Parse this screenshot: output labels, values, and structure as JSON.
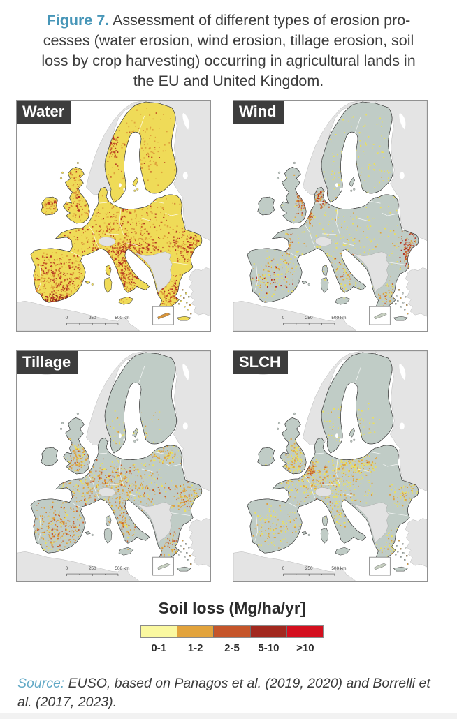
{
  "figure_caption": {
    "label": "Figure 7.",
    "lines": [
      "Assessment of different types of erosion pro-",
      "cesses (water erosion, wind erosion, tillage erosion, soil",
      "loss by crop harvesting) occurring in agricultural lands in",
      "the EU and United Kingdom."
    ]
  },
  "panels": [
    {
      "label": "Water",
      "base_color": "#efdb58",
      "scheme": "water"
    },
    {
      "label": "Wind",
      "base_color": "#c0ccc6",
      "scheme": "wind"
    },
    {
      "label": "Tillage",
      "base_color": "#c0ccc6",
      "scheme": "tillage"
    },
    {
      "label": "SLCH",
      "base_color": "#c0ccc6",
      "scheme": "slch"
    }
  ],
  "map": {
    "scale_bar": {
      "start": "0",
      "mid": "250",
      "end": "500 km"
    }
  },
  "legend": {
    "title": "Soil loss (Mg/ha/yr]",
    "classes": [
      {
        "label": "0-1",
        "color": "#faf8a0"
      },
      {
        "label": "1-2",
        "color": "#e2a33c"
      },
      {
        "label": "2-5",
        "color": "#c5552a"
      },
      {
        "label": "5-10",
        "color": "#a2281e"
      },
      {
        "label": ">10",
        "color": "#d40f1e"
      }
    ]
  },
  "source": {
    "label": "Source:",
    "text": "EUSO, based on Panagos et al. (2019, 2020) and Borrelli et al. (2017, 2023)."
  },
  "colors": {
    "figure_label": "#4796b8",
    "source_label": "#62a9c6",
    "caption_text": "#3c3c3c",
    "panel_label_bg": "#3d3d3d",
    "panel_label_text": "#ffffff",
    "non_eu_land": "#e4e4e4",
    "sea": "#ffffff"
  }
}
